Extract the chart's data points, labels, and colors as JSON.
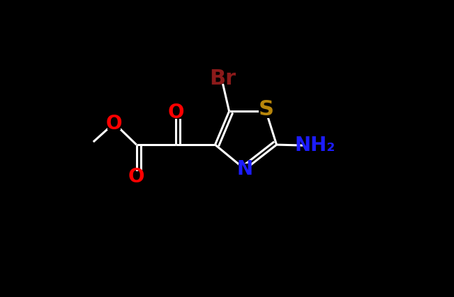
{
  "background_color": "#000000",
  "atoms": {
    "S": {
      "color": "#B8860B",
      "fontsize": 20
    },
    "N": {
      "color": "#1C1CFF",
      "fontsize": 20
    },
    "O": {
      "color": "#FF0000",
      "fontsize": 20
    },
    "Br": {
      "color": "#8B1A1A",
      "fontsize": 20
    },
    "NH2": {
      "color": "#1C1CFF",
      "fontsize": 20
    }
  },
  "bond_color": "#FFFFFF",
  "bond_lw": 2.2,
  "fig_width": 6.51,
  "fig_height": 4.25,
  "dpi": 100,
  "xlim": [
    0,
    10
  ],
  "ylim": [
    0,
    6.5
  ]
}
